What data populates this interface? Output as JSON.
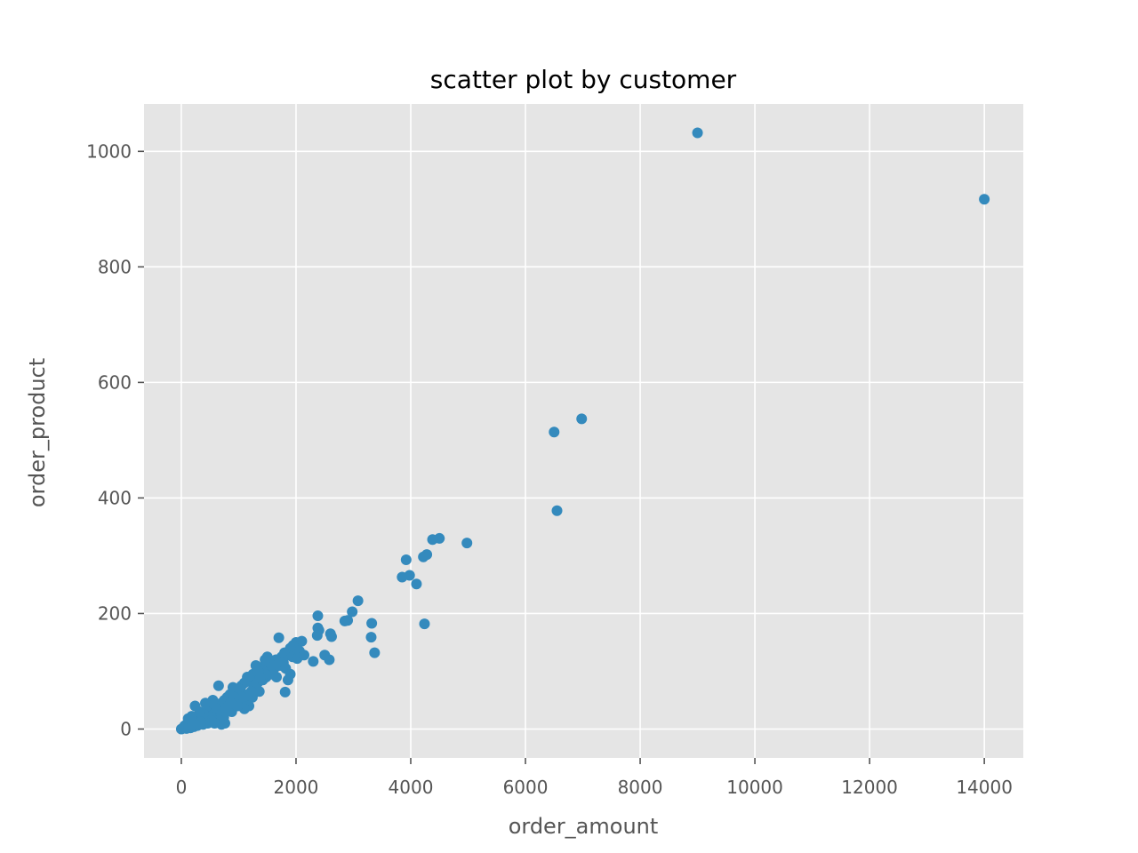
{
  "chart_data": {
    "type": "scatter",
    "title": "scatter plot by customer",
    "xlabel": "order_amount",
    "ylabel": "order_product",
    "xlim": [
      -650,
      14680
    ],
    "ylim": [
      -50,
      1082
    ],
    "x_ticks": [
      0,
      2000,
      4000,
      6000,
      8000,
      10000,
      12000,
      14000
    ],
    "x_tick_labels": [
      "0",
      "2000",
      "4000",
      "6000",
      "8000",
      "10000",
      "12000",
      "14000"
    ],
    "y_ticks": [
      0,
      200,
      400,
      600,
      800,
      1000
    ],
    "y_tick_labels": [
      "0",
      "200",
      "400",
      "600",
      "800",
      "1000"
    ],
    "grid": true,
    "background": "#E5E5E5",
    "grid_color": "#FFFFFF",
    "point_color": "#348ABD",
    "series": [
      {
        "points": [
          [
            9000,
            1032
          ],
          [
            14000,
            917
          ],
          [
            6980,
            537
          ],
          [
            6500,
            514
          ],
          [
            6550,
            378
          ],
          [
            4980,
            322
          ],
          [
            4500,
            330
          ],
          [
            4380,
            328
          ],
          [
            4280,
            302
          ],
          [
            4220,
            298
          ],
          [
            3920,
            293
          ],
          [
            3980,
            266
          ],
          [
            3850,
            263
          ],
          [
            4100,
            251
          ],
          [
            4240,
            182
          ],
          [
            3080,
            222
          ],
          [
            2980,
            203
          ],
          [
            2900,
            188
          ],
          [
            2850,
            187
          ],
          [
            2380,
            196
          ],
          [
            2380,
            175
          ],
          [
            2400,
            171
          ],
          [
            2370,
            162
          ],
          [
            2600,
            165
          ],
          [
            2620,
            160
          ],
          [
            2500,
            128
          ],
          [
            2580,
            120
          ],
          [
            2300,
            117
          ],
          [
            3320,
            183
          ],
          [
            3310,
            159
          ],
          [
            3370,
            132
          ],
          [
            1700,
            158
          ],
          [
            2100,
            152
          ],
          [
            2000,
            150
          ],
          [
            1950,
            145
          ],
          [
            1900,
            140
          ],
          [
            1850,
            128
          ],
          [
            1800,
            132
          ],
          [
            1750,
            125
          ],
          [
            1700,
            120
          ],
          [
            1600,
            115
          ],
          [
            1500,
            125
          ],
          [
            1450,
            110
          ],
          [
            1400,
            100
          ],
          [
            1300,
            110
          ],
          [
            1250,
            95
          ],
          [
            1200,
            85
          ],
          [
            1150,
            90
          ],
          [
            1100,
            80
          ],
          [
            1050,
            75
          ],
          [
            1000,
            70
          ],
          [
            950,
            65
          ],
          [
            900,
            72
          ],
          [
            850,
            60
          ],
          [
            800,
            55
          ],
          [
            750,
            50
          ],
          [
            700,
            45
          ],
          [
            650,
            75
          ],
          [
            600,
            40
          ],
          [
            550,
            50
          ],
          [
            500,
            35
          ],
          [
            450,
            30
          ],
          [
            400,
            25
          ],
          [
            350,
            20
          ],
          [
            300,
            15
          ],
          [
            250,
            12
          ],
          [
            200,
            10
          ],
          [
            150,
            8
          ],
          [
            100,
            5
          ],
          [
            50,
            3
          ],
          [
            20,
            1
          ],
          [
            0,
            0
          ],
          [
            120,
            18
          ],
          [
            180,
            22
          ],
          [
            240,
            40
          ],
          [
            320,
            30
          ],
          [
            420,
            45
          ],
          [
            480,
            20
          ],
          [
            560,
            25
          ],
          [
            620,
            35
          ],
          [
            680,
            20
          ],
          [
            720,
            30
          ],
          [
            760,
            10
          ],
          [
            820,
            40
          ],
          [
            880,
            30
          ],
          [
            940,
            45
          ],
          [
            1020,
            50
          ],
          [
            1080,
            60
          ],
          [
            1120,
            45
          ],
          [
            1180,
            40
          ],
          [
            1240,
            55
          ],
          [
            1290,
            70
          ],
          [
            1330,
            80
          ],
          [
            1360,
            65
          ],
          [
            1420,
            85
          ],
          [
            1480,
            90
          ],
          [
            1520,
            100
          ],
          [
            1560,
            95
          ],
          [
            1620,
            105
          ],
          [
            1660,
            90
          ],
          [
            1720,
            110
          ],
          [
            1780,
            115
          ],
          [
            1820,
            105
          ],
          [
            1860,
            85
          ],
          [
            1900,
            95
          ],
          [
            1810,
            64
          ],
          [
            1940,
            125
          ],
          [
            2020,
            122
          ],
          [
            2060,
            135
          ],
          [
            2140,
            128
          ],
          [
            1650,
            120
          ],
          [
            1580,
            110
          ],
          [
            1460,
            120
          ],
          [
            1380,
            90
          ],
          [
            1340,
            100
          ],
          [
            1260,
            75
          ],
          [
            1220,
            65
          ],
          [
            1160,
            60
          ],
          [
            1100,
            35
          ],
          [
            1060,
            55
          ],
          [
            980,
            40
          ],
          [
            920,
            55
          ],
          [
            860,
            45
          ],
          [
            780,
            35
          ],
          [
            740,
            20
          ],
          [
            700,
            8
          ],
          [
            660,
            15
          ],
          [
            580,
            10
          ],
          [
            520,
            15
          ],
          [
            460,
            10
          ],
          [
            380,
            8
          ],
          [
            340,
            12
          ],
          [
            280,
            6
          ],
          [
            220,
            4
          ],
          [
            160,
            2
          ],
          [
            90,
            1
          ],
          [
            60,
            6
          ],
          [
            30,
            2
          ],
          [
            130,
            3
          ],
          [
            190,
            6
          ]
        ]
      }
    ]
  }
}
